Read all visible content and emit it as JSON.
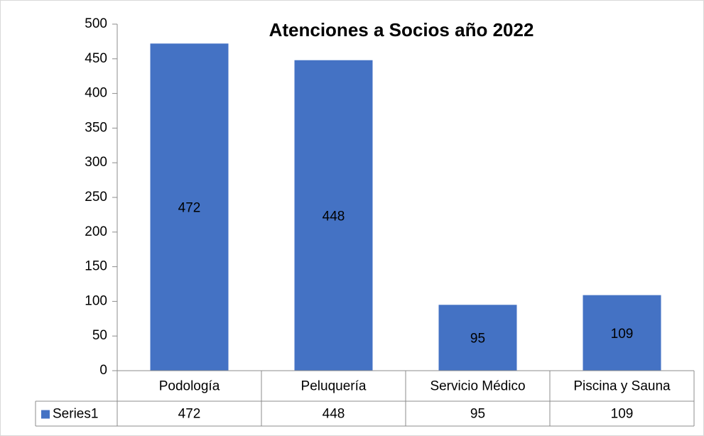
{
  "chart_data": {
    "type": "bar",
    "title": "Atenciones a Socios año 2022",
    "categories": [
      "Podología",
      "Peluquería",
      "Servicio Médico",
      "Piscina y Sauna"
    ],
    "series": [
      {
        "name": "Series1",
        "color": "#4472c4",
        "values": [
          472,
          448,
          95,
          109
        ]
      }
    ],
    "ylim": [
      0,
      500
    ],
    "yticks": [
      0,
      50,
      100,
      150,
      200,
      250,
      300,
      350,
      400,
      450,
      500
    ],
    "data_labels": true,
    "data_table": true
  }
}
